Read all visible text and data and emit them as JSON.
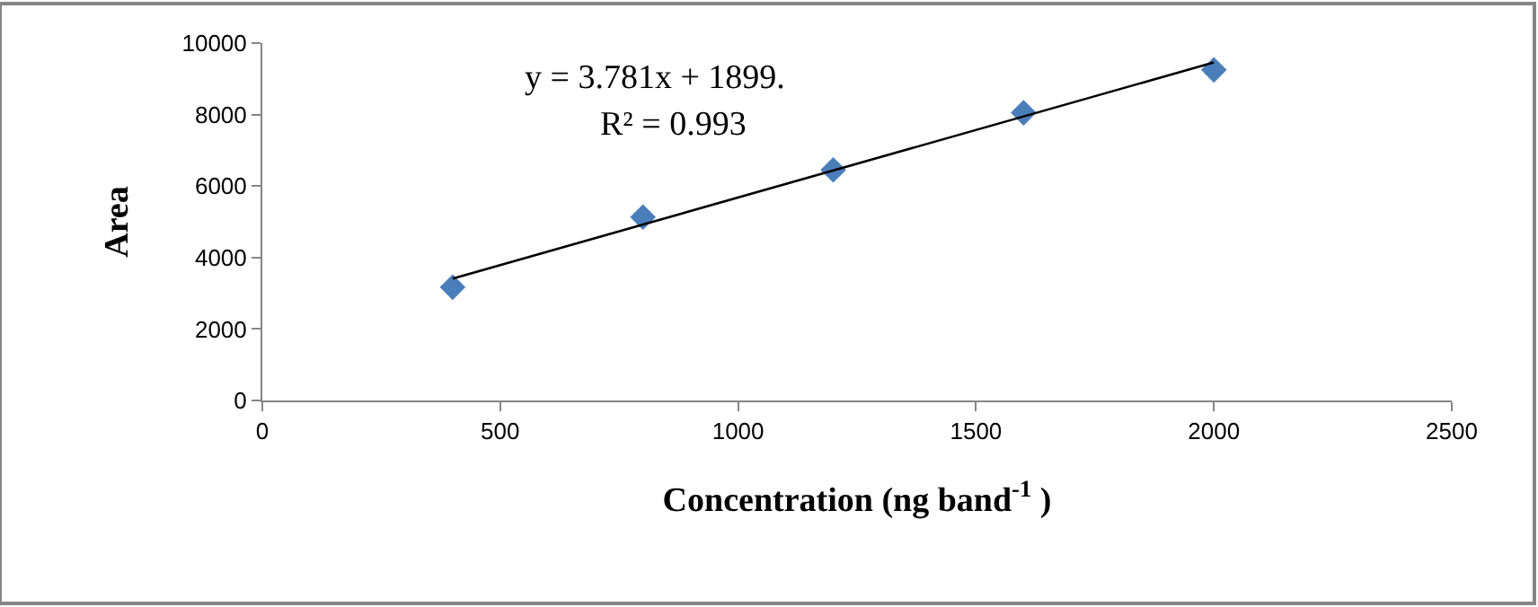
{
  "chart_data": {
    "type": "scatter",
    "xlabel": "Concentration (ng band$^{-1}$ )",
    "ylabel": "Area",
    "xlim": [
      0,
      2500
    ],
    "xticks": [
      0,
      500,
      1000,
      1500,
      2000,
      2500
    ],
    "ylim": [
      0,
      10000
    ],
    "yticks": [
      0,
      2000,
      4000,
      6000,
      8000,
      10000
    ],
    "grid": false,
    "series": [
      {
        "marker": "diamond",
        "color": "#4a7ebb",
        "x": [
          400,
          800,
          1200,
          1600,
          2000
        ],
        "values": [
          3170,
          5130,
          6450,
          8050,
          9250
        ]
      },
      {
        "type": "line",
        "marker": "none",
        "color": "#000000",
        "x": [
          400,
          2000
        ],
        "values": [
          3410,
          9460
        ]
      }
    ],
    "annotations": [
      "y = 3.781x + 1899.",
      "R² = 0.993"
    ]
  }
}
